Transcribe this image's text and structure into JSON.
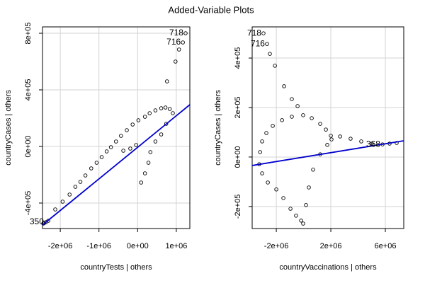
{
  "title": "Added-Variable Plots",
  "chart_data": [
    {
      "type": "scatter",
      "xlabel": "countryTests | others",
      "ylabel": "countryCases | others",
      "xlim": [
        -2460000,
        1350000
      ],
      "ylim": [
        -580000,
        845000
      ],
      "xticks": [
        {
          "value": -2000000,
          "label": "-2e+06"
        },
        {
          "value": -1000000,
          "label": "-1e+06"
        },
        {
          "value": 0,
          "label": "0e+00"
        },
        {
          "value": 1000000,
          "label": "1e+06"
        }
      ],
      "yticks": [
        {
          "value": -400000,
          "label": "-4e+05"
        },
        {
          "value": 0,
          "label": "0e+00"
        },
        {
          "value": 400000,
          "label": "4e+05"
        },
        {
          "value": 800000,
          "label": "8e+05"
        }
      ],
      "grid": true,
      "color": "#000000",
      "fit_color": "#0000cd",
      "x": [
        -2440000,
        -2410000,
        -2370000,
        -2310000,
        -2130000,
        -1940000,
        -1760000,
        -1610000,
        -1480000,
        -1350000,
        -1200000,
        -1060000,
        -930000,
        -800000,
        -690000,
        -560000,
        -430000,
        -280000,
        -130000,
        20000,
        190000,
        310000,
        460000,
        610000,
        720000,
        830000,
        910000,
        740000,
        610000,
        460000,
        330000,
        280000,
        190000,
        90000,
        -370000,
        -190000,
        -40000,
        760000,
        980000,
        1070000,
        1170000,
        1240000
      ],
      "y": [
        -545000,
        -540000,
        -535000,
        -525000,
        -445000,
        -390000,
        -340000,
        -285000,
        -250000,
        -205000,
        -155000,
        -115000,
        -75000,
        -35000,
        -5000,
        35000,
        75000,
        115000,
        155000,
        185000,
        210000,
        235000,
        255000,
        270000,
        275000,
        265000,
        235000,
        160000,
        85000,
        35000,
        -40000,
        -115000,
        -190000,
        -255000,
        -30000,
        -15000,
        10000,
        460000,
        600000,
        685000,
        735000,
        800000
      ],
      "point_labels": [
        {
          "text": "718",
          "x": 1240000,
          "y": 800000
        },
        {
          "text": "716",
          "x": 1170000,
          "y": 735000
        },
        {
          "text": "350",
          "x": -2370000,
          "y": -535000
        }
      ],
      "fit_x": [
        -2460000,
        1350000
      ],
      "fit_y": [
        -555000,
        295000
      ]
    },
    {
      "type": "scatter",
      "xlabel": "countryVaccinations | others",
      "ylabel": "countryCases | others",
      "xlim": [
        -3770000,
        7350000
      ],
      "ylim": [
        -289000,
        526000
      ],
      "xticks": [
        {
          "value": -2000000,
          "label": "-2e+06"
        },
        {
          "value": 2000000,
          "label": "2e+06"
        },
        {
          "value": 6000000,
          "label": "6e+06"
        }
      ],
      "yticks": [
        {
          "value": -200000,
          "label": "-2e+05"
        },
        {
          "value": 0,
          "label": "0e+00"
        },
        {
          "value": 200000,
          "label": "2e+05"
        },
        {
          "value": 400000,
          "label": "4e+05"
        }
      ],
      "grid": true,
      "color": "#000000",
      "fit_color": "#0000cd",
      "x": [
        -2940000,
        -2680000,
        -2470000,
        -2100000,
        -1430000,
        -860000,
        -440000,
        -3250000,
        -3190000,
        -3040000,
        -2730000,
        -2260000,
        -1580000,
        -860000,
        -30000,
        600000,
        1220000,
        1640000,
        2000000,
        -3040000,
        -2620000,
        -2000000,
        -1480000,
        -960000,
        -550000,
        -180000,
        -30000,
        180000,
        390000,
        700000,
        1220000,
        1740000,
        2050000,
        2680000,
        3450000,
        4230000,
        5010000,
        5790000,
        6310000,
        6830000
      ],
      "y": [
        500000,
        457000,
        417000,
        369000,
        286000,
        234000,
        206000,
        -29000,
        20000,
        63000,
        97000,
        126000,
        149000,
        163000,
        169000,
        157000,
        134000,
        111000,
        86000,
        -66000,
        -103000,
        -131000,
        -166000,
        -209000,
        -237000,
        -257000,
        -269000,
        -194000,
        -123000,
        -51000,
        11000,
        49000,
        71000,
        83000,
        74000,
        63000,
        54000,
        51000,
        54000,
        57000
      ],
      "point_labels": [
        {
          "text": "718",
          "x": -2940000,
          "y": 500000
        },
        {
          "text": "716",
          "x": -2680000,
          "y": 457000
        },
        {
          "text": "368",
          "x": 5790000,
          "y": 51000
        }
      ],
      "fit_x": [
        -3770000,
        7350000
      ],
      "fit_y": [
        -34300,
        65700
      ]
    }
  ]
}
